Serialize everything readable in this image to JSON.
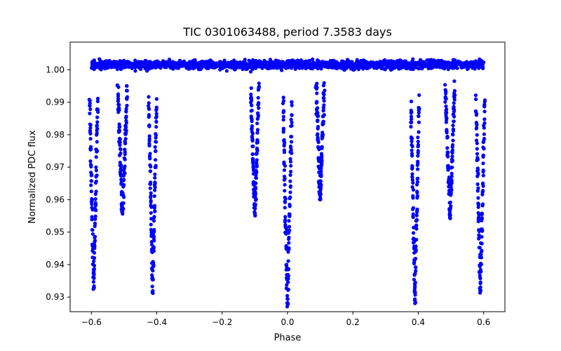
{
  "chart_data": {
    "type": "scatter",
    "title": "TIC 0301063488, period 7.3583 days",
    "xlabel": "Phase",
    "ylabel": "Normalized PDC flux",
    "xlim": [
      -0.665,
      0.665
    ],
    "ylim": [
      0.9255,
      1.0085
    ],
    "grid": false,
    "marker_color": "#0000ff",
    "x_ticks": [
      -0.6,
      -0.4,
      -0.2,
      0.0,
      0.2,
      0.4,
      0.6
    ],
    "x_tick_labels": [
      "−0.6",
      "−0.4",
      "−0.2",
      "0.0",
      "0.2",
      "0.4",
      "0.6"
    ],
    "y_ticks": [
      0.93,
      0.94,
      0.95,
      0.96,
      0.97,
      0.98,
      0.99,
      1.0
    ],
    "y_tick_labels": [
      "0.93",
      "0.94",
      "0.95",
      "0.96",
      "0.97",
      "0.98",
      "0.99",
      "1.00"
    ],
    "baseline": {
      "x_range": [
        -0.6,
        0.6
      ],
      "flux": 1.0015,
      "scatter": 0.0013
    },
    "eclipses": [
      {
        "name": "primary-eclipse-phase-0",
        "center": 0.0,
        "half_width": 0.0135,
        "min_flux": 0.927
      },
      {
        "name": "primary-eclipse-phase-minus-0.4",
        "center": -0.4125,
        "half_width": 0.0125,
        "min_flux": 0.931
      },
      {
        "name": "primary-eclipse-phase-0.4",
        "center": 0.39,
        "half_width": 0.0125,
        "min_flux": 0.928
      },
      {
        "name": "primary-eclipse-phase-0.6",
        "center": 0.59,
        "half_width": 0.0135,
        "min_flux": 0.931
      },
      {
        "name": "primary-eclipse-phase-minus-0.6",
        "center": -0.593,
        "half_width": 0.0125,
        "min_flux": 0.932
      },
      {
        "name": "secondary-eclipse-phase-minus-0.5",
        "center": -0.505,
        "half_width": 0.0145,
        "min_flux": 0.955
      },
      {
        "name": "secondary-eclipse-phase-minus-0.1",
        "center": -0.1,
        "half_width": 0.0125,
        "min_flux": 0.955
      },
      {
        "name": "secondary-eclipse-phase-0.1",
        "center": 0.1,
        "half_width": 0.0125,
        "min_flux": 0.96
      },
      {
        "name": "secondary-eclipse-phase-0.5",
        "center": 0.497,
        "half_width": 0.0145,
        "min_flux": 0.954
      }
    ]
  }
}
